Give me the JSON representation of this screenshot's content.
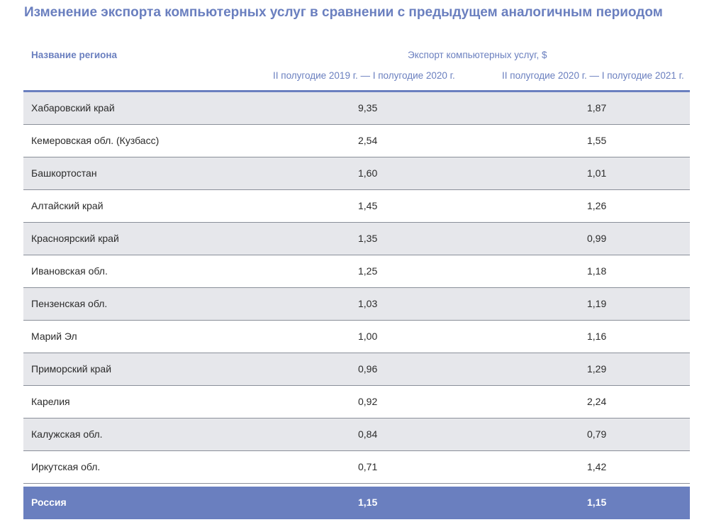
{
  "chart_data": {
    "type": "table",
    "title": "Изменение экспорта компьютерных услуг в сравнении с предыдущем аналогичным периодом",
    "row_header": "Название региона",
    "group_header": "Экспорт компьютерных услуг, $",
    "columns": [
      "II полугодие 2019 г. — I полугодие 2020 г.",
      "II полугодие 2020 г. — I полугодие 2021 г."
    ],
    "rows": [
      {
        "name": "Хабаровский край",
        "v1": "9,35",
        "v2": "1,87"
      },
      {
        "name": "Кемеровская обл. (Кузбасс)",
        "v1": "2,54",
        "v2": "1,55"
      },
      {
        "name": "Башкортостан",
        "v1": "1,60",
        "v2": "1,01"
      },
      {
        "name": "Алтайский край",
        "v1": "1,45",
        "v2": "1,26"
      },
      {
        "name": "Красноярский край",
        "v1": "1,35",
        "v2": "0,99"
      },
      {
        "name": "Ивановская обл.",
        "v1": "1,25",
        "v2": "1,18"
      },
      {
        "name": "Пензенская обл.",
        "v1": "1,03",
        "v2": "1,19"
      },
      {
        "name": "Марий Эл",
        "v1": "1,00",
        "v2": "1,16"
      },
      {
        "name": "Приморский край",
        "v1": "0,96",
        "v2": "1,29"
      },
      {
        "name": "Карелия",
        "v1": "0,92",
        "v2": "2,24"
      },
      {
        "name": "Калужская обл.",
        "v1": "0,84",
        "v2": "0,79"
      },
      {
        "name": "Иркутская обл.",
        "v1": "0,71",
        "v2": "1,42"
      }
    ],
    "total": {
      "name": "Россия",
      "v1": "1,15",
      "v2": "1,15"
    }
  },
  "colors": {
    "accent": "#6a7fbf",
    "row_shaded": "#e6e7eb",
    "row_divider": "#8a8f99"
  }
}
